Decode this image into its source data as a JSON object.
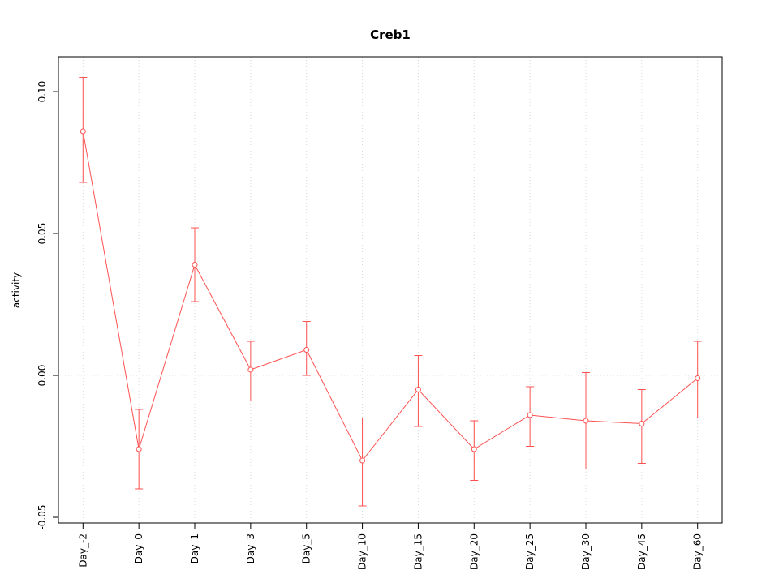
{
  "chart_data": {
    "type": "line",
    "title": "Creb1",
    "ylabel": "activity",
    "xlabel": "",
    "categories": [
      "Day_-2",
      "Day_0",
      "Day_1",
      "Day_3",
      "Day_5",
      "Day_10",
      "Day_15",
      "Day_20",
      "Day_25",
      "Day_30",
      "Day_45",
      "Day_60"
    ],
    "series": [
      {
        "name": "Creb1",
        "values": [
          0.086,
          -0.026,
          0.039,
          0.002,
          0.009,
          -0.03,
          -0.005,
          -0.026,
          -0.014,
          -0.016,
          -0.017,
          -0.001
        ],
        "error_low": [
          0.068,
          -0.04,
          0.026,
          -0.009,
          0.0,
          -0.046,
          -0.018,
          -0.037,
          -0.025,
          -0.033,
          -0.031,
          -0.015
        ],
        "error_high": [
          0.105,
          -0.012,
          0.052,
          0.012,
          0.019,
          -0.015,
          0.007,
          -0.016,
          -0.004,
          0.001,
          -0.005,
          0.012
        ]
      }
    ],
    "yticks": [
      -0.05,
      0.0,
      0.05,
      0.1
    ],
    "ytick_labels": [
      "-0.05",
      "0.00",
      "0.05",
      "0.10"
    ],
    "ylim": [
      -0.052,
      0.1123
    ],
    "grid": "dotted vertical line at each category, dotted horizontal line at y=0",
    "legend": "none",
    "marker": "open-circle",
    "line_color": "#ff5050",
    "grid_color": "#d8d8d8",
    "box_color": "#000000",
    "background": "#ffffff"
  }
}
